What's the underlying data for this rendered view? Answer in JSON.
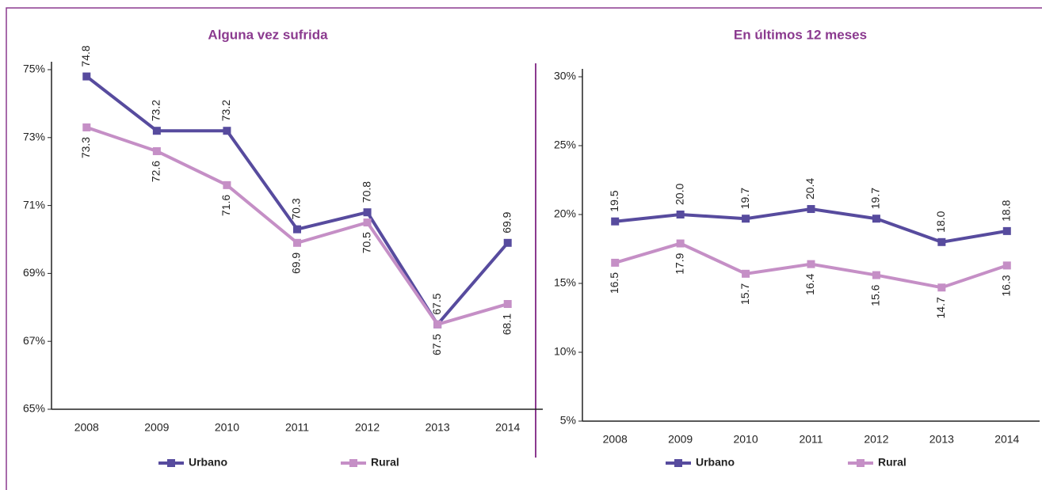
{
  "chart_data": [
    {
      "type": "line",
      "title": "Alguna vez sufrida",
      "categories": [
        "2008",
        "2009",
        "2010",
        "2011",
        "2012",
        "2013",
        "2014"
      ],
      "series": [
        {
          "name": "Urbano",
          "color": "#574b9e",
          "values": [
            74.8,
            73.2,
            73.2,
            70.3,
            70.8,
            67.5,
            69.9
          ]
        },
        {
          "name": "Rural",
          "color": "#c58fc6",
          "values": [
            73.3,
            72.6,
            71.6,
            69.9,
            70.5,
            67.5,
            68.1
          ]
        }
      ],
      "ylim": [
        65,
        75
      ],
      "yticks": [
        {
          "value": 65,
          "label": "65%"
        },
        {
          "value": 67,
          "label": "67%"
        },
        {
          "value": 69,
          "label": "69%"
        },
        {
          "value": 71,
          "label": "71%"
        },
        {
          "value": 73,
          "label": "73%"
        },
        {
          "value": 75,
          "label": "75%"
        }
      ],
      "legend": "bottom"
    },
    {
      "type": "line",
      "title": "En últimos 12 meses",
      "categories": [
        "2008",
        "2009",
        "2010",
        "2011",
        "2012",
        "2013",
        "2014"
      ],
      "series": [
        {
          "name": "Urbano",
          "color": "#574b9e",
          "values": [
            19.5,
            20.0,
            19.7,
            20.4,
            19.7,
            18.0,
            18.8
          ],
          "value_labels": [
            "19.5",
            "20.0",
            "19.7",
            "20.4",
            "19.7",
            "18.0",
            "18.8"
          ]
        },
        {
          "name": "Rural",
          "color": "#c58fc6",
          "values": [
            16.5,
            17.9,
            15.7,
            16.4,
            15.6,
            14.7,
            16.3
          ],
          "value_labels": [
            "16.5",
            "17.9",
            "15.7",
            "16.4",
            "15.6",
            "14.7",
            "16.3"
          ]
        }
      ],
      "ylim": [
        5,
        30
      ],
      "yticks": [
        {
          "value": 5,
          "label": "5%"
        },
        {
          "value": 10,
          "label": "10%"
        },
        {
          "value": 15,
          "label": "15%"
        },
        {
          "value": 20,
          "label": "20%"
        },
        {
          "value": 25,
          "label": "25%"
        },
        {
          "value": 30,
          "label": "30%"
        }
      ],
      "legend": "bottom"
    }
  ]
}
